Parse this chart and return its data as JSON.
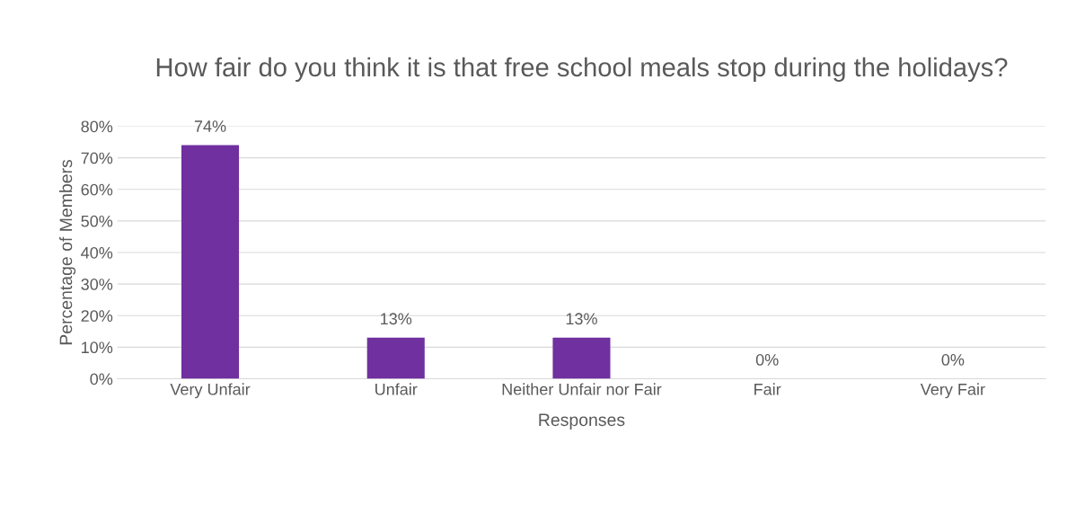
{
  "chart_data": {
    "type": "bar",
    "title": "How fair do you think it is that free school meals stop during the holidays?",
    "xlabel": "Responses",
    "ylabel": "Percentage of Members",
    "categories": [
      "Very Unfair",
      "Unfair",
      "Neither Unfair nor Fair",
      "Fair",
      "Very Fair"
    ],
    "values": [
      74,
      13,
      13,
      0,
      0
    ],
    "value_labels": [
      "74%",
      "13%",
      "13%",
      "0%",
      "0%"
    ],
    "color": "#7030a0",
    "ylim": [
      0,
      80
    ],
    "yticks": [
      {
        "value": 0,
        "label": "0%"
      },
      {
        "value": 10,
        "label": "10%"
      },
      {
        "value": 20,
        "label": "20%"
      },
      {
        "value": 30,
        "label": "30%"
      },
      {
        "value": 40,
        "label": "40%"
      },
      {
        "value": 50,
        "label": "50%"
      },
      {
        "value": 60,
        "label": "60%"
      },
      {
        "value": 70,
        "label": "70%"
      },
      {
        "value": 80,
        "label": "80%"
      }
    ],
    "grid": "y",
    "legend": false
  }
}
